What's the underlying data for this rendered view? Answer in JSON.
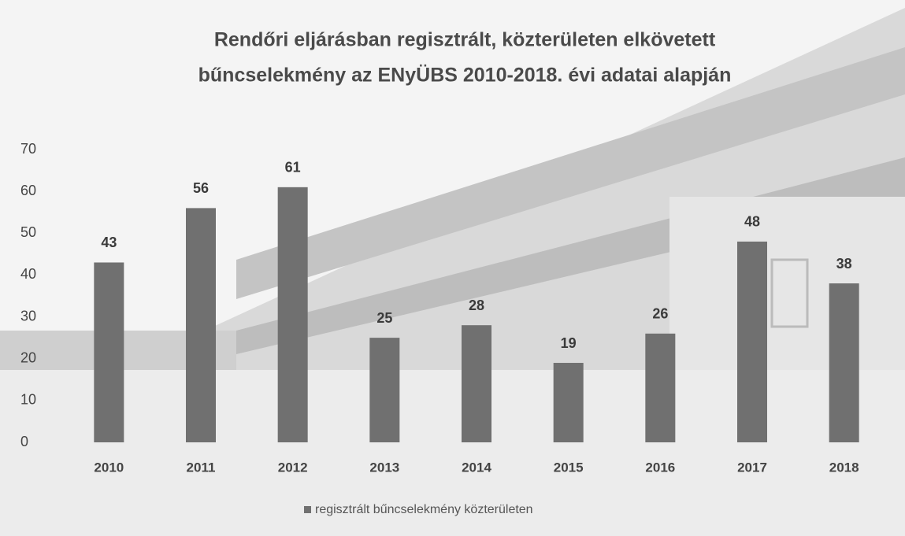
{
  "chart_data": {
    "type": "bar",
    "title": [
      "Rendőri eljárásban regisztrált, közterületen elkövetett",
      "bűncselekmény az ENyÜBS 2010-2018. évi adatai alapján"
    ],
    "categories": [
      "2010",
      "2011",
      "2012",
      "2013",
      "2014",
      "2015",
      "2016",
      "2017",
      "2018"
    ],
    "series": [
      {
        "name": "regisztrált bűncselekmény közterületen",
        "color": "#707070",
        "values": [
          43,
          56,
          61,
          25,
          28,
          19,
          26,
          48,
          38
        ]
      }
    ],
    "ylim": [
      0,
      70
    ],
    "yticks": [
      0,
      10,
      20,
      30,
      40,
      50,
      60,
      70
    ],
    "grid": false,
    "legend": "bottom"
  }
}
